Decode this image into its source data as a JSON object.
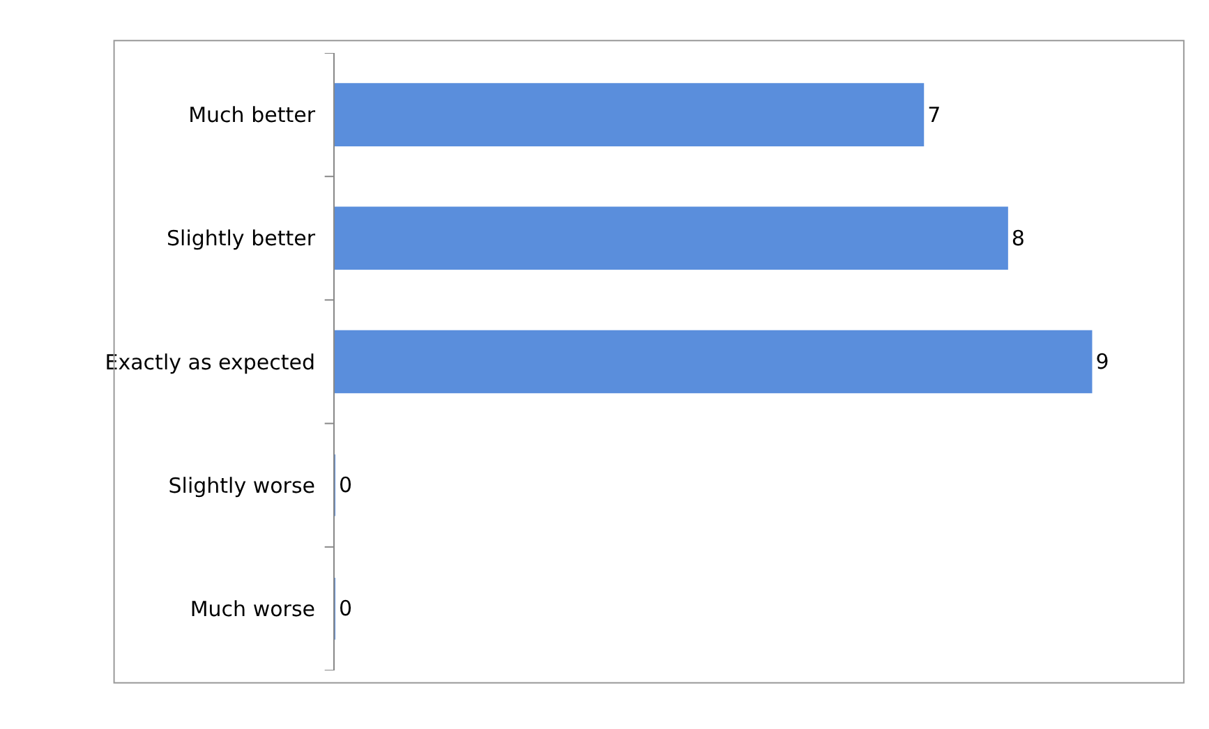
{
  "chart_data": {
    "type": "bar",
    "orientation": "horizontal",
    "categories": [
      "Much better",
      "Slightly better",
      "Exactly as expected",
      "Slightly worse",
      "Much worse"
    ],
    "values": [
      7,
      8,
      9,
      0,
      0
    ],
    "color": "#5a8edc",
    "data_labels": true
  }
}
